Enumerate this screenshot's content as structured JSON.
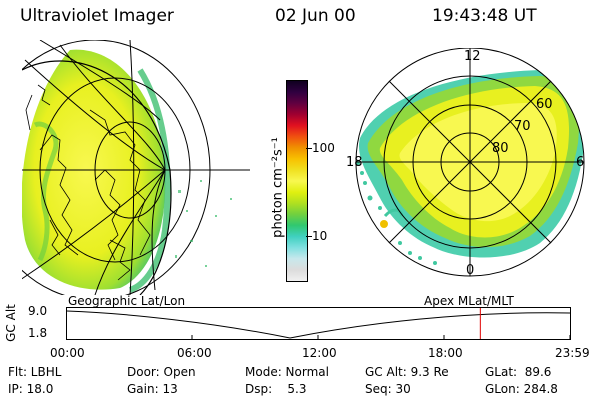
{
  "header": {
    "instrument": "Ultraviolet Imager",
    "date": "02 Jun 00",
    "time": "19:43:48 UT"
  },
  "colorbar": {
    "label": "photon cm⁻²s⁻¹",
    "tick_100": "100",
    "tick_10": "10",
    "colors": [
      "#f0f0f0",
      "#dcdcdc",
      "#c8e8ec",
      "#80e0e0",
      "#40d0c0",
      "#30c870",
      "#70d040",
      "#b0e020",
      "#e0f010",
      "#f8f850",
      "#f0e020",
      "#f8c000",
      "#f09000",
      "#f05010",
      "#e01020",
      "#a00030",
      "#600040",
      "#300040",
      "#100020"
    ]
  },
  "geo_map": {
    "label": "Geographic Lat/Lon"
  },
  "polar_map": {
    "label": "Apex MLat/MLT",
    "mlt_12": "12",
    "mlt_18": "18",
    "mlt_6": "6",
    "mlt_0": "0",
    "lat_60": "60",
    "lat_70": "70",
    "lat_80": "80"
  },
  "altitude_plot": {
    "ylabel": "GC Alt",
    "y_top": "9.0",
    "y_bottom": "1.8",
    "x_ticks": [
      "00:00",
      "06:00",
      "12:00",
      "18:00",
      "23:59"
    ],
    "marker_color": "#e00000",
    "marker_time_hours": 19.73
  },
  "info": {
    "flt": "Flt: LBHL",
    "ip": "IP: 18.0",
    "door": "Door: Open",
    "gain": "Gain: 13",
    "mode": "Mode: Normal",
    "dsp": "Dsp:    5.3",
    "gcalt": "GC Alt: 9.3 Re",
    "seq": "Seq: 30",
    "glat": "GLat:  89.6",
    "glon": "GLon: 284.8"
  }
}
